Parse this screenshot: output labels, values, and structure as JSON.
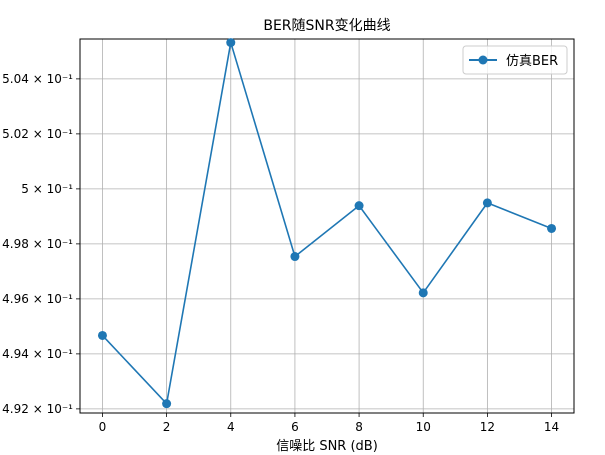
{
  "chart_data": {
    "type": "line",
    "title": "BER随SNR变化曲线",
    "xlabel": "信噪比 SNR (dB)",
    "ylabel": "",
    "xlim": [
      -0.7,
      14.7
    ],
    "ylim": [
      0.49185,
      0.50545
    ],
    "x_ticks": [
      0,
      2,
      4,
      6,
      8,
      10,
      12,
      14
    ],
    "x_tick_labels": [
      "0",
      "2",
      "4",
      "6",
      "8",
      "10",
      "12",
      "14"
    ],
    "y_ticks": [
      0.492,
      0.494,
      0.496,
      0.498,
      0.5,
      0.502,
      0.504
    ],
    "y_tick_labels": [
      "4.92 × 10⁻¹",
      "4.94 × 10⁻¹",
      "4.96 × 10⁻¹",
      "4.98 × 10⁻¹",
      "5 × 10⁻¹",
      "5.02 × 10⁻¹",
      "5.04 × 10⁻¹"
    ],
    "grid": true,
    "legend_position": "top-right",
    "series": [
      {
        "name": "仿真BER",
        "color": "#1f77b4",
        "marker": "circle",
        "x": [
          0,
          2,
          4,
          6,
          8,
          10,
          12,
          14
        ],
        "y": [
          0.49467,
          0.49219,
          0.50532,
          0.49754,
          0.49939,
          0.49622,
          0.49949,
          0.49856
        ]
      }
    ]
  }
}
